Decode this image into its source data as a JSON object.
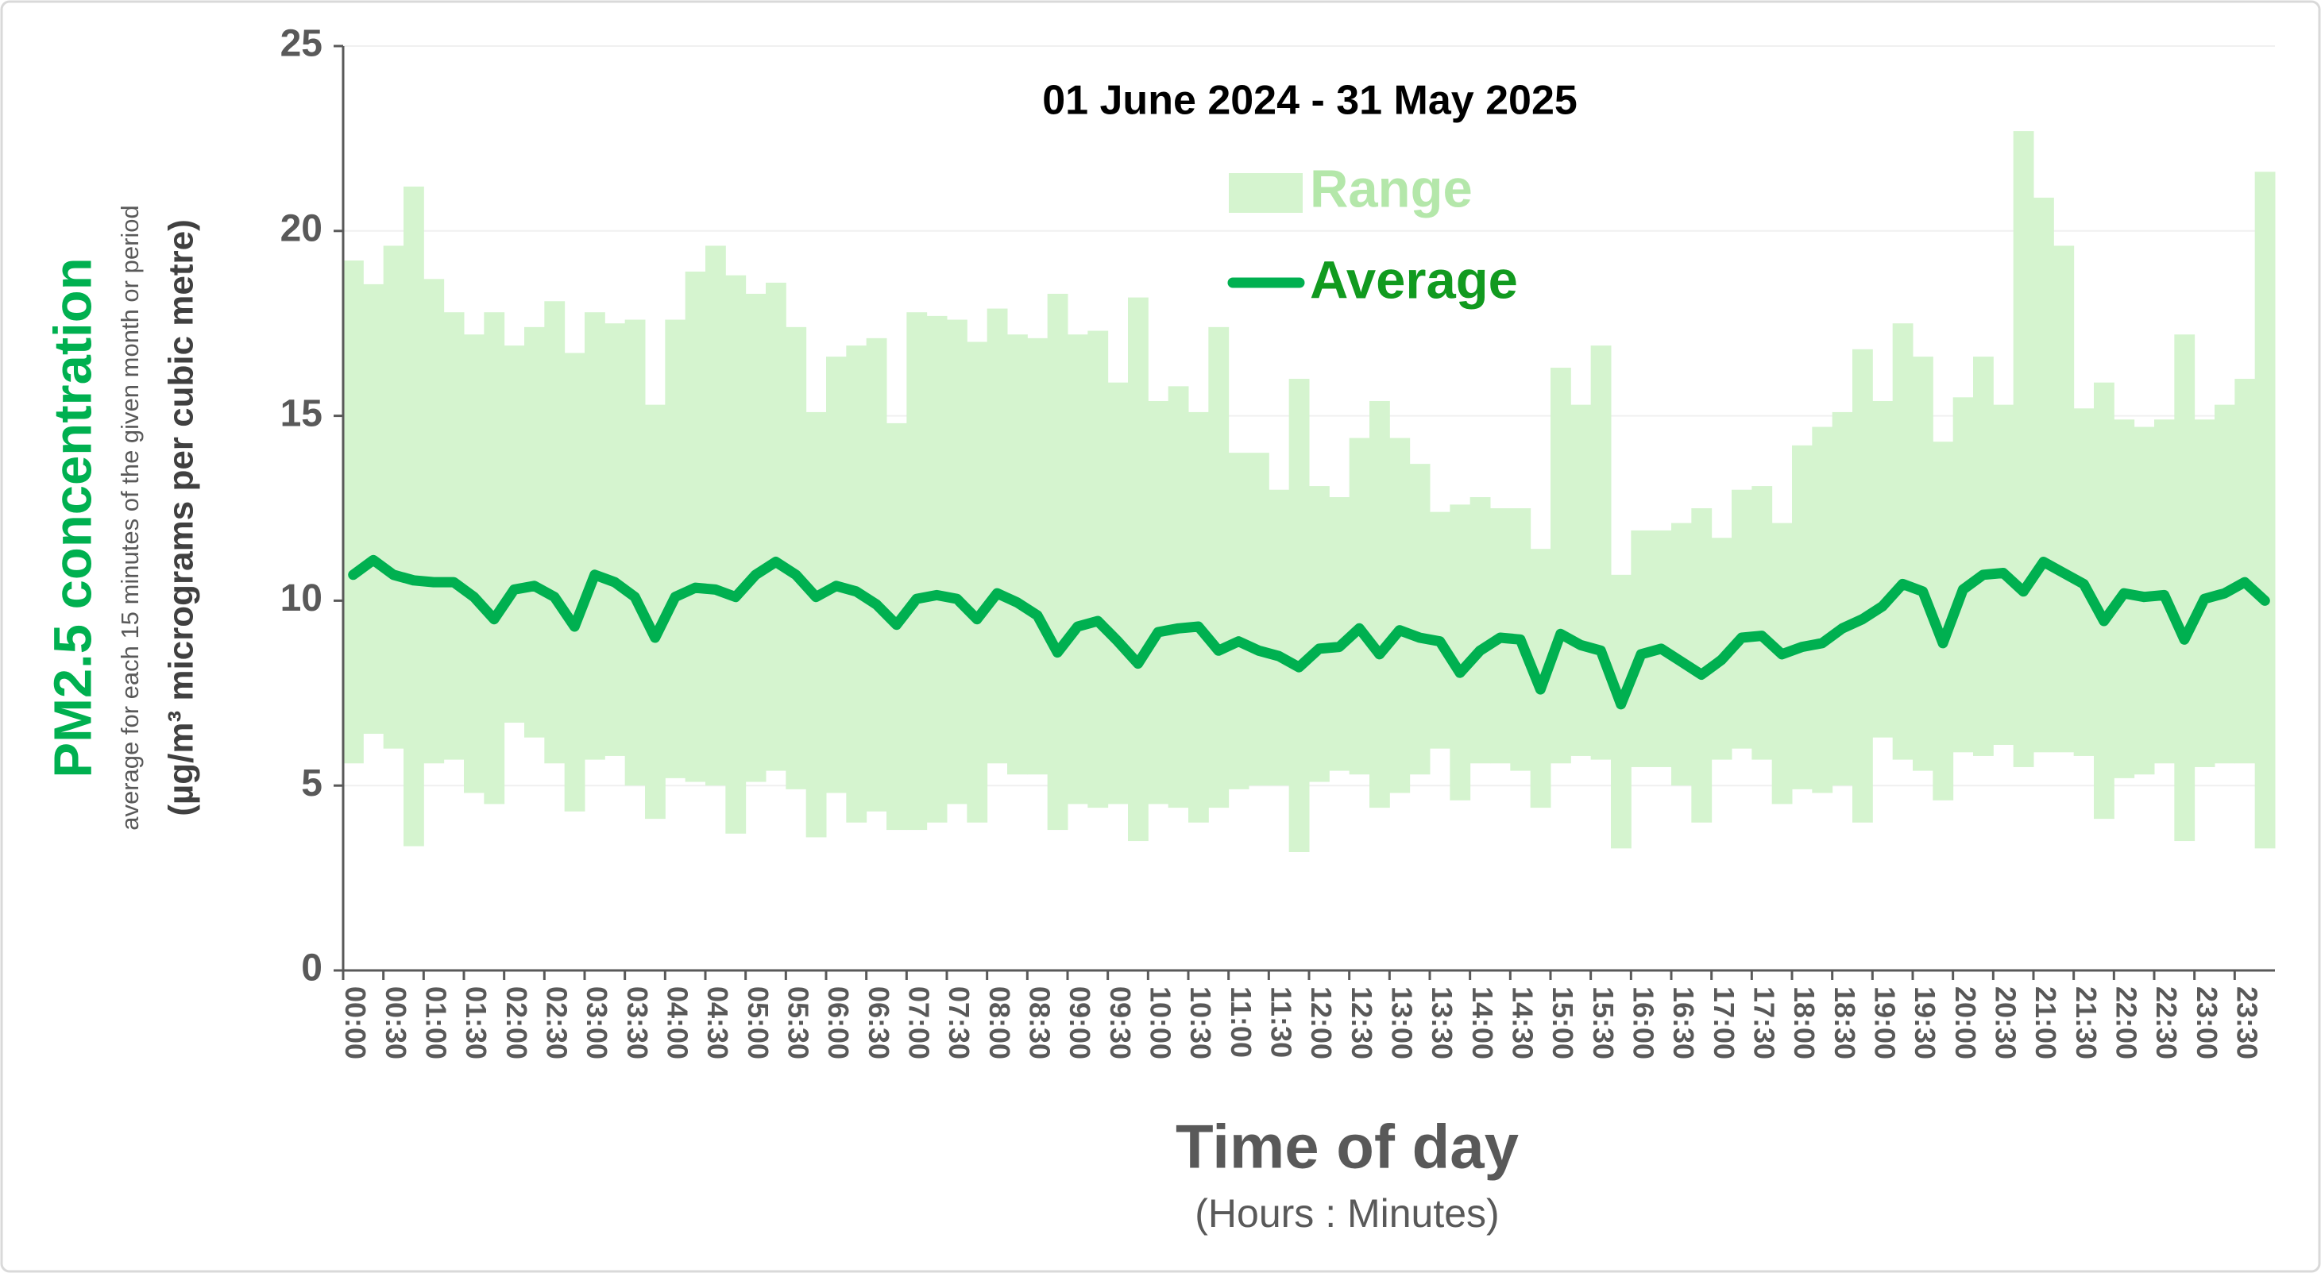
{
  "chart_data": {
    "type": "range-line",
    "title": "01 June 2024 - 31 May 2025",
    "y_label": "PM2.5 concentration",
    "y_sublabel": "average for each 15 minutes of the given month or period",
    "y_unit_label": "(µg/m³ micrograms per cubic metre)",
    "x_label": "Time of day",
    "x_sublabel": "(Hours : Minutes)",
    "categories": [
      "00:00",
      null,
      "00:30",
      null,
      "01:00",
      null,
      "01:30",
      null,
      "02:00",
      null,
      "02:30",
      null,
      "03:00",
      null,
      "03:30",
      null,
      "04:00",
      null,
      "04:30",
      null,
      "05:00",
      null,
      "05:30",
      null,
      "06:00",
      null,
      "06:30",
      null,
      "07:00",
      null,
      "07:30",
      null,
      "08:00",
      null,
      "08:30",
      null,
      "09:00",
      null,
      "09:30",
      null,
      "10:00",
      null,
      "10:30",
      null,
      "11:00",
      null,
      "11:30",
      null,
      "12:00",
      null,
      "12:30",
      null,
      "13:00",
      null,
      "13:30",
      null,
      "14:00",
      null,
      "14:30",
      null,
      "15:00",
      null,
      "15:30",
      null,
      "16:00",
      null,
      "16:30",
      null,
      "17:00",
      null,
      "17:30",
      null,
      "18:00",
      null,
      "18:30",
      null,
      "19:00",
      null,
      "19:30",
      null,
      "20:00",
      null,
      "20:30",
      null,
      "21:00",
      null,
      "21:30",
      null,
      "22:00",
      null,
      "22:30",
      null,
      "23:00",
      null,
      "23:30",
      null
    ],
    "series": [
      {
        "name": "Range",
        "color": "#d5f4cf",
        "legend_color": "#b4e7aa",
        "low": [
          5.6,
          6.4,
          6.0,
          3.36,
          5.6,
          5.7,
          4.8,
          4.5,
          6.7,
          6.3,
          5.6,
          4.3,
          5.7,
          5.8,
          5.0,
          4.1,
          5.2,
          5.1,
          5.0,
          3.7,
          5.1,
          5.4,
          4.9,
          3.6,
          4.8,
          4.0,
          4.3,
          3.8,
          3.8,
          4.0,
          4.5,
          4.0,
          5.6,
          5.3,
          5.3,
          3.8,
          4.5,
          4.4,
          4.5,
          3.5,
          4.5,
          4.4,
          4.0,
          4.4,
          4.9,
          5.0,
          5.0,
          3.2,
          5.1,
          5.4,
          5.3,
          4.4,
          4.8,
          5.3,
          6.0,
          4.6,
          5.6,
          5.6,
          5.4,
          4.4,
          5.6,
          5.8,
          5.7,
          3.3,
          5.5,
          5.5,
          5.0,
          4.0,
          5.7,
          6.0,
          5.7,
          4.5,
          4.9,
          4.8,
          5.0,
          4.0,
          6.3,
          5.7,
          5.4,
          4.6,
          5.9,
          5.8,
          6.1,
          5.5,
          5.9,
          5.9,
          5.8,
          4.1,
          5.2,
          5.3,
          5.6,
          3.5,
          5.5,
          5.6,
          5.6,
          3.3
        ],
        "high": [
          19.2,
          18.56,
          19.6,
          21.2,
          18.7,
          17.8,
          17.2,
          17.8,
          16.9,
          17.4,
          18.1,
          16.7,
          17.8,
          17.5,
          17.6,
          15.3,
          17.6,
          18.9,
          19.6,
          18.8,
          18.3,
          18.6,
          17.4,
          15.1,
          16.6,
          16.9,
          17.1,
          14.8,
          17.8,
          17.7,
          17.6,
          17.0,
          17.9,
          17.2,
          17.1,
          18.3,
          17.2,
          17.3,
          15.9,
          18.2,
          15.4,
          15.8,
          15.1,
          17.4,
          14.0,
          14.0,
          13.0,
          16.0,
          13.1,
          12.8,
          14.4,
          15.4,
          14.4,
          13.7,
          12.4,
          12.6,
          12.8,
          12.5,
          12.5,
          11.4,
          16.3,
          15.3,
          16.9,
          10.7,
          11.9,
          11.9,
          12.1,
          12.5,
          11.7,
          13.0,
          13.1,
          12.1,
          14.2,
          14.7,
          15.1,
          16.8,
          15.4,
          17.5,
          16.6,
          14.3,
          15.5,
          16.6,
          15.3,
          22.7,
          20.9,
          19.6,
          15.2,
          15.9,
          14.9,
          14.7,
          14.9,
          17.2,
          14.9,
          15.3,
          16.0,
          21.6
        ]
      },
      {
        "name": "Average",
        "color": "#00b050",
        "legend_color": "#119a1f",
        "values": [
          10.7,
          11.1,
          10.7,
          10.55,
          10.5,
          10.5,
          10.1,
          9.5,
          10.3,
          10.4,
          10.1,
          9.3,
          10.7,
          10.5,
          10.1,
          9.0,
          10.1,
          10.35,
          10.3,
          10.1,
          10.7,
          11.05,
          10.7,
          10.1,
          10.4,
          10.25,
          9.9,
          9.35,
          10.05,
          10.15,
          10.05,
          9.5,
          10.2,
          9.95,
          9.6,
          8.6,
          9.3,
          9.45,
          8.9,
          8.3,
          9.15,
          9.25,
          9.3,
          8.65,
          8.9,
          8.65,
          8.5,
          8.2,
          8.7,
          8.75,
          9.25,
          8.55,
          9.2,
          9.0,
          8.9,
          8.05,
          8.65,
          9.0,
          8.95,
          7.6,
          9.1,
          8.8,
          8.65,
          7.2,
          8.55,
          8.7,
          8.35,
          8.0,
          8.4,
          9.0,
          9.05,
          8.55,
          8.75,
          8.85,
          9.25,
          9.5,
          9.85,
          10.45,
          10.25,
          8.85,
          10.3,
          10.7,
          10.75,
          10.25,
          11.05,
          10.75,
          10.45,
          9.45,
          10.2,
          10.1,
          10.15,
          8.95,
          10.05,
          10.2,
          10.5,
          10.0
        ]
      }
    ],
    "ylim": [
      0,
      25
    ],
    "yticks": [
      0,
      5,
      10,
      15,
      20,
      25
    ],
    "grid": true
  }
}
